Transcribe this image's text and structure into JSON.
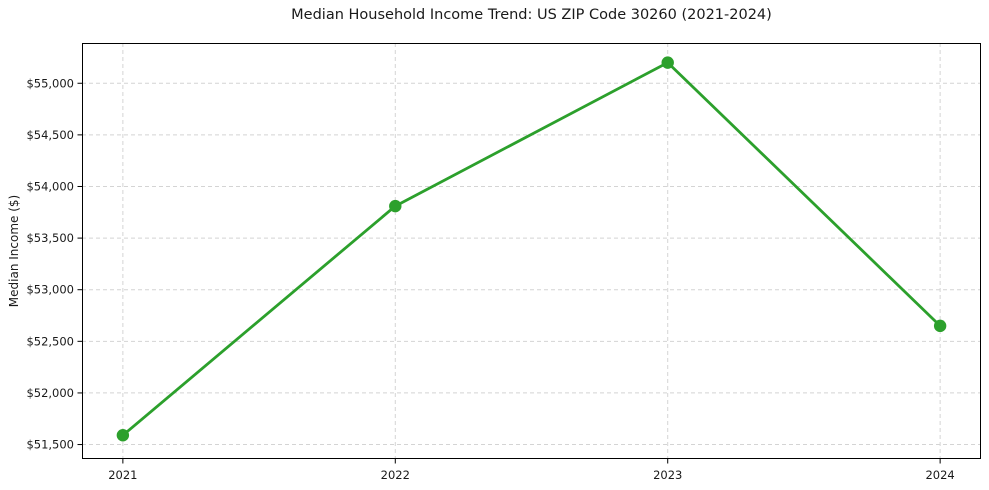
{
  "chart_data": {
    "type": "line",
    "title": "Median Household Income Trend: US ZIP Code 30260 (2021-2024)",
    "xlabel": "",
    "ylabel": "Median Income ($)",
    "categories": [
      "2021",
      "2022",
      "2023",
      "2024"
    ],
    "values": [
      51590,
      53810,
      55200,
      52650
    ],
    "ylim": [
      51360,
      55390
    ],
    "y_ticks": [
      51500,
      52000,
      52500,
      53000,
      53500,
      54000,
      54500,
      55000
    ],
    "y_tick_labels": [
      "$51,500",
      "$52,000",
      "$52,500",
      "$53,000",
      "$53,500",
      "$54,000",
      "$54,500",
      "$55,000"
    ],
    "grid": true,
    "grid_style": "dashed",
    "legend": false,
    "line_color": "#2ca02c",
    "marker": "circle",
    "colors": {
      "background": "#ffffff",
      "grid": "#d4d4d4",
      "spine": "#000000",
      "text": "#1a1a1a"
    }
  }
}
